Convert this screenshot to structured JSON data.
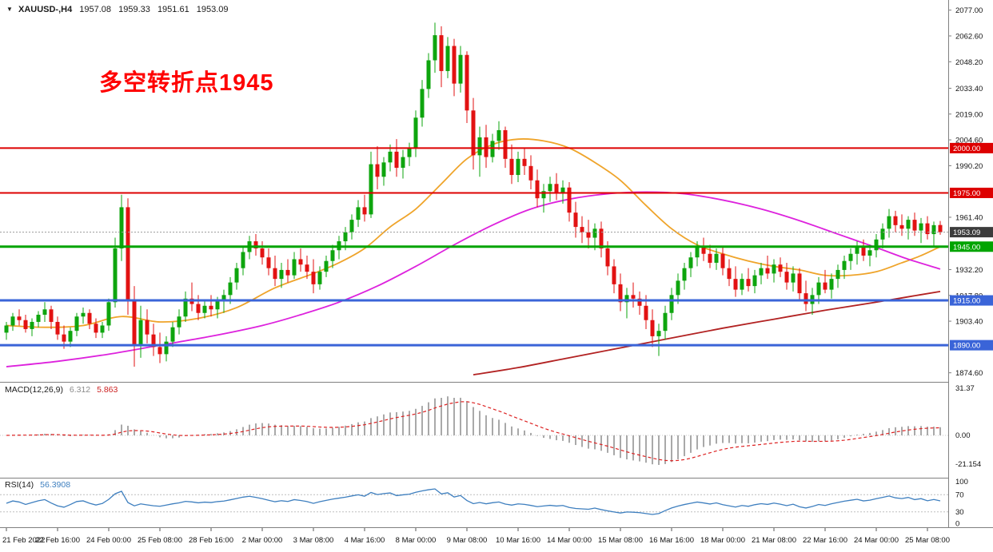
{
  "window": {
    "background": "#ffffff"
  },
  "header": {
    "collapse_icon": "▼",
    "symbol_period": "XAUUSD-,H4",
    "open": "1957.08",
    "high": "1959.33",
    "low": "1951.61",
    "close": "1953.09"
  },
  "annotation": {
    "text": "多空转折点1945",
    "color": "#ff0000"
  },
  "macd_panel": {
    "label": "MACD(12,26,9)",
    "main_value": "6.312",
    "signal_value": "5.863",
    "axis_labels": [
      "31.37",
      "0.00",
      "-21.154"
    ]
  },
  "rsi_panel": {
    "label": "RSI(14)",
    "value": "56.3908",
    "axis_labels": [
      "100",
      "70",
      "30",
      "0"
    ]
  },
  "price_axis": {
    "scale_labels": [
      2077.0,
      2062.6,
      2048.2,
      2033.4,
      2019.0,
      2004.6,
      1990.2,
      1961.4,
      1932.2,
      1917.8,
      1903.4,
      1874.6
    ],
    "badges": [
      {
        "label": "2000.00",
        "price": 2000.0,
        "color": "#dd0000"
      },
      {
        "label": "1975.00",
        "price": 1975.0,
        "color": "#dd0000"
      },
      {
        "label": "1953.09",
        "price": 1953.09,
        "color": "#3c3c3c"
      },
      {
        "label": "1945.00",
        "price": 1945.0,
        "color": "#00a400"
      },
      {
        "label": "1915.00",
        "price": 1915.0,
        "color": "#3a64d8"
      },
      {
        "label": "1890.00",
        "price": 1890.0,
        "color": "#3a64d8"
      }
    ]
  },
  "chart_data": {
    "type": "candlestick",
    "symbol": "XAUUSD-",
    "timeframe": "H4",
    "ylim": [
      1869.55,
      2082.65
    ],
    "current_price": 1953.09,
    "up_color": "#0ea50e",
    "down_color": "#e21212",
    "hlines": [
      {
        "price": 2000.0,
        "color": "#dd0000",
        "width": 2
      },
      {
        "price": 1975.0,
        "color": "#dd0000",
        "width": 2
      },
      {
        "price": 1945.0,
        "color": "#00a400",
        "width": 3
      },
      {
        "price": 1915.0,
        "color": "#3a64d8",
        "width": 3
      },
      {
        "price": 1890.0,
        "color": "#3a64d8",
        "width": 3
      }
    ],
    "time_labels": [
      {
        "bar": 0,
        "text": "21 Feb 2022"
      },
      {
        "bar": 8,
        "text": "22 Feb 16:00"
      },
      {
        "bar": 16,
        "text": "24 Feb 00:00"
      },
      {
        "bar": 24,
        "text": "25 Feb 08:00"
      },
      {
        "bar": 32,
        "text": "28 Feb 16:00"
      },
      {
        "bar": 40,
        "text": "2 Mar 00:00"
      },
      {
        "bar": 48,
        "text": "3 Mar 08:00"
      },
      {
        "bar": 56,
        "text": "4 Mar 16:00"
      },
      {
        "bar": 64,
        "text": "8 Mar 00:00"
      },
      {
        "bar": 72,
        "text": "9 Mar 08:00"
      },
      {
        "bar": 80,
        "text": "10 Mar 16:00"
      },
      {
        "bar": 88,
        "text": "14 Mar 00:00"
      },
      {
        "bar": 96,
        "text": "15 Mar 08:00"
      },
      {
        "bar": 104,
        "text": "16 Mar 16:00"
      },
      {
        "bar": 112,
        "text": "18 Mar 00:00"
      },
      {
        "bar": 120,
        "text": "21 Mar 08:00"
      },
      {
        "bar": 128,
        "text": "22 Mar 16:00"
      },
      {
        "bar": 136,
        "text": "24 Mar 00:00"
      },
      {
        "bar": 144,
        "text": "25 Mar 08:00"
      }
    ],
    "candles": [
      [
        1897,
        1903,
        1893,
        1901
      ],
      [
        1901,
        1908,
        1898,
        1906
      ],
      [
        1906,
        1910,
        1901,
        1904
      ],
      [
        1904,
        1907,
        1897,
        1899
      ],
      [
        1899,
        1905,
        1895,
        1903
      ],
      [
        1903,
        1909,
        1900,
        1907
      ],
      [
        1907,
        1914,
        1903,
        1910
      ],
      [
        1910,
        1912,
        1899,
        1903
      ],
      [
        1903,
        1906,
        1893,
        1896
      ],
      [
        1896,
        1901,
        1888,
        1892
      ],
      [
        1892,
        1900,
        1889,
        1898
      ],
      [
        1898,
        1908,
        1895,
        1906
      ],
      [
        1906,
        1911,
        1902,
        1908
      ],
      [
        1908,
        1910,
        1899,
        1902
      ],
      [
        1902,
        1905,
        1894,
        1897
      ],
      [
        1897,
        1903,
        1894,
        1901
      ],
      [
        1901,
        1916,
        1898,
        1914
      ],
      [
        1914,
        1950,
        1911,
        1944
      ],
      [
        1944,
        1974,
        1937,
        1967
      ],
      [
        1967,
        1972,
        1907,
        1915
      ],
      [
        1915,
        1923,
        1878,
        1890
      ],
      [
        1890,
        1912,
        1883,
        1904
      ],
      [
        1904,
        1910,
        1891,
        1896
      ],
      [
        1896,
        1902,
        1884,
        1889
      ],
      [
        1889,
        1897,
        1880,
        1885
      ],
      [
        1885,
        1895,
        1881,
        1892
      ],
      [
        1892,
        1903,
        1889,
        1900
      ],
      [
        1900,
        1910,
        1896,
        1906
      ],
      [
        1906,
        1920,
        1903,
        1916
      ],
      [
        1916,
        1925,
        1909,
        1913
      ],
      [
        1913,
        1918,
        1904,
        1908
      ],
      [
        1908,
        1915,
        1905,
        1912
      ],
      [
        1912,
        1918,
        1906,
        1910
      ],
      [
        1910,
        1917,
        1905,
        1915
      ],
      [
        1915,
        1921,
        1908,
        1918
      ],
      [
        1918,
        1928,
        1913,
        1925
      ],
      [
        1925,
        1936,
        1921,
        1933
      ],
      [
        1933,
        1945,
        1929,
        1942
      ],
      [
        1942,
        1951,
        1938,
        1948
      ],
      [
        1948,
        1952,
        1940,
        1944
      ],
      [
        1944,
        1948,
        1935,
        1939
      ],
      [
        1939,
        1944,
        1929,
        1933
      ],
      [
        1933,
        1940,
        1923,
        1927
      ],
      [
        1927,
        1936,
        1922,
        1932
      ],
      [
        1932,
        1938,
        1925,
        1929
      ],
      [
        1929,
        1942,
        1927,
        1938
      ],
      [
        1938,
        1944,
        1931,
        1935
      ],
      [
        1935,
        1940,
        1927,
        1931
      ],
      [
        1931,
        1938,
        1919,
        1924
      ],
      [
        1924,
        1934,
        1921,
        1931
      ],
      [
        1931,
        1940,
        1928,
        1937
      ],
      [
        1937,
        1946,
        1933,
        1943
      ],
      [
        1943,
        1951,
        1938,
        1948
      ],
      [
        1948,
        1956,
        1943,
        1953
      ],
      [
        1953,
        1963,
        1949,
        1960
      ],
      [
        1960,
        1971,
        1956,
        1967
      ],
      [
        1967,
        1974,
        1959,
        1963
      ],
      [
        1963,
        1998,
        1961,
        1991
      ],
      [
        1991,
        2001,
        1977,
        1984
      ],
      [
        1984,
        1995,
        1979,
        1992
      ],
      [
        1992,
        2002,
        1987,
        1998
      ],
      [
        1998,
        2005,
        1984,
        1989
      ],
      [
        1989,
        1999,
        1983,
        1995
      ],
      [
        1995,
        2003,
        1990,
        2000
      ],
      [
        2000,
        2021,
        1995,
        2017
      ],
      [
        2017,
        2038,
        2012,
        2033
      ],
      [
        2033,
        2053,
        2028,
        2049
      ],
      [
        2049,
        2070,
        2042,
        2063
      ],
      [
        2063,
        2068,
        2034,
        2043
      ],
      [
        2043,
        2062,
        2039,
        2057
      ],
      [
        2057,
        2061,
        2029,
        2036
      ],
      [
        2036,
        2057,
        2031,
        2052
      ],
      [
        2052,
        2054,
        2014,
        2021
      ],
      [
        2021,
        2028,
        1988,
        1996
      ],
      [
        1996,
        2012,
        1984,
        2006
      ],
      [
        2006,
        2013,
        1989,
        1995
      ],
      [
        1995,
        2008,
        1992,
        2004
      ],
      [
        2004,
        2015,
        1999,
        2010
      ],
      [
        2010,
        2012,
        1989,
        1994
      ],
      [
        1994,
        2002,
        1980,
        1985
      ],
      [
        1985,
        1998,
        1981,
        1994
      ],
      [
        1994,
        2000,
        1985,
        1990
      ],
      [
        1990,
        1996,
        1977,
        1982
      ],
      [
        1982,
        1988,
        1967,
        1972
      ],
      [
        1972,
        1980,
        1964,
        1976
      ],
      [
        1976,
        1984,
        1970,
        1980
      ],
      [
        1980,
        1986,
        1971,
        1975
      ],
      [
        1975,
        1982,
        1969,
        1978
      ],
      [
        1978,
        1981,
        1959,
        1964
      ],
      [
        1964,
        1970,
        1950,
        1956
      ],
      [
        1956,
        1962,
        1947,
        1953
      ],
      [
        1953,
        1960,
        1944,
        1950
      ],
      [
        1950,
        1958,
        1943,
        1955
      ],
      [
        1955,
        1959,
        1939,
        1944
      ],
      [
        1944,
        1948,
        1929,
        1934
      ],
      [
        1934,
        1938,
        1919,
        1924
      ],
      [
        1924,
        1930,
        1909,
        1914
      ],
      [
        1914,
        1922,
        1905,
        1918
      ],
      [
        1918,
        1925,
        1911,
        1916
      ],
      [
        1916,
        1920,
        1907,
        1912
      ],
      [
        1912,
        1918,
        1899,
        1904
      ],
      [
        1904,
        1910,
        1889,
        1895
      ],
      [
        1895,
        1902,
        1884,
        1898
      ],
      [
        1898,
        1912,
        1893,
        1908
      ],
      [
        1908,
        1922,
        1904,
        1918
      ],
      [
        1918,
        1930,
        1913,
        1926
      ],
      [
        1926,
        1936,
        1921,
        1933
      ],
      [
        1933,
        1942,
        1928,
        1939
      ],
      [
        1939,
        1948,
        1934,
        1945
      ],
      [
        1945,
        1950,
        1937,
        1941
      ],
      [
        1941,
        1946,
        1933,
        1936
      ],
      [
        1936,
        1944,
        1932,
        1941
      ],
      [
        1941,
        1945,
        1929,
        1933
      ],
      [
        1933,
        1938,
        1923,
        1927
      ],
      [
        1927,
        1934,
        1917,
        1921
      ],
      [
        1921,
        1930,
        1918,
        1927
      ],
      [
        1927,
        1933,
        1920,
        1923
      ],
      [
        1923,
        1932,
        1919,
        1929
      ],
      [
        1929,
        1936,
        1924,
        1933
      ],
      [
        1933,
        1940,
        1927,
        1930
      ],
      [
        1930,
        1938,
        1925,
        1935
      ],
      [
        1935,
        1939,
        1928,
        1931
      ],
      [
        1931,
        1936,
        1921,
        1925
      ],
      [
        1925,
        1934,
        1920,
        1930
      ],
      [
        1930,
        1933,
        1915,
        1919
      ],
      [
        1919,
        1926,
        1909,
        1913
      ],
      [
        1913,
        1922,
        1907,
        1918
      ],
      [
        1918,
        1928,
        1913,
        1925
      ],
      [
        1925,
        1932,
        1919,
        1921
      ],
      [
        1921,
        1930,
        1916,
        1927
      ],
      [
        1927,
        1935,
        1922,
        1932
      ],
      [
        1932,
        1940,
        1927,
        1937
      ],
      [
        1937,
        1944,
        1932,
        1941
      ],
      [
        1941,
        1948,
        1935,
        1945
      ],
      [
        1945,
        1949,
        1937,
        1940
      ],
      [
        1940,
        1946,
        1934,
        1943
      ],
      [
        1943,
        1952,
        1939,
        1949
      ],
      [
        1949,
        1958,
        1944,
        1955
      ],
      [
        1955,
        1966,
        1950,
        1962
      ],
      [
        1962,
        1965,
        1953,
        1957
      ],
      [
        1957,
        1963,
        1951,
        1955
      ],
      [
        1955,
        1962,
        1949,
        1960
      ],
      [
        1960,
        1964,
        1951,
        1954
      ],
      [
        1954,
        1961,
        1947,
        1958
      ],
      [
        1958,
        1962,
        1949,
        1952
      ],
      [
        1952,
        1959,
        1944.6,
        1957
      ],
      [
        1957.08,
        1959.33,
        1951.61,
        1953.09
      ]
    ],
    "moving_averages": [
      {
        "name": "ma-fast-orange",
        "color": "#efa42a",
        "points": [
          [
            0,
            1901
          ],
          [
            6,
            1900
          ],
          [
            12,
            1901
          ],
          [
            18,
            1906
          ],
          [
            24,
            1903
          ],
          [
            30,
            1905
          ],
          [
            36,
            1911
          ],
          [
            42,
            1922
          ],
          [
            48,
            1930
          ],
          [
            52,
            1936
          ],
          [
            56,
            1944
          ],
          [
            60,
            1956
          ],
          [
            64,
            1966
          ],
          [
            68,
            1980
          ],
          [
            72,
            1994
          ],
          [
            76,
            2002
          ],
          [
            80,
            2005
          ],
          [
            84,
            2004
          ],
          [
            88,
            2000
          ],
          [
            92,
            1992
          ],
          [
            96,
            1982
          ],
          [
            100,
            1968
          ],
          [
            104,
            1955
          ],
          [
            108,
            1946
          ],
          [
            112,
            1941
          ],
          [
            116,
            1937
          ],
          [
            120,
            1934
          ],
          [
            124,
            1932
          ],
          [
            128,
            1929
          ],
          [
            132,
            1929
          ],
          [
            136,
            1931
          ],
          [
            140,
            1936
          ],
          [
            143,
            1940
          ],
          [
            146,
            1945
          ]
        ]
      },
      {
        "name": "ma-medium-magenta",
        "color": "#dd22dd",
        "points": [
          [
            0,
            1878
          ],
          [
            8,
            1881
          ],
          [
            16,
            1885
          ],
          [
            24,
            1890
          ],
          [
            32,
            1895
          ],
          [
            40,
            1901
          ],
          [
            46,
            1907
          ],
          [
            52,
            1914
          ],
          [
            58,
            1923
          ],
          [
            64,
            1934
          ],
          [
            70,
            1946
          ],
          [
            76,
            1957
          ],
          [
            82,
            1966
          ],
          [
            88,
            1971.5
          ],
          [
            94,
            1974.5
          ],
          [
            100,
            1975.5
          ],
          [
            106,
            1974.5
          ],
          [
            112,
            1971
          ],
          [
            118,
            1966
          ],
          [
            124,
            1959.5
          ],
          [
            130,
            1952
          ],
          [
            136,
            1944.5
          ],
          [
            141,
            1938
          ],
          [
            146,
            1932.5
          ]
        ]
      },
      {
        "name": "ma-slow-darkred",
        "color": "#b22222",
        "points": [
          [
            73,
            1873.5
          ],
          [
            80,
            1877.5
          ],
          [
            88,
            1883
          ],
          [
            96,
            1888.5
          ],
          [
            104,
            1894
          ],
          [
            112,
            1899.5
          ],
          [
            120,
            1904.5
          ],
          [
            128,
            1909.5
          ],
          [
            136,
            1914
          ],
          [
            141,
            1917
          ],
          [
            146,
            1920
          ]
        ]
      }
    ],
    "macd": {
      "fast": 12,
      "slow": 26,
      "signal": 9,
      "histogram_color": "#a9a9a9",
      "signal_color": "#dd2222"
    },
    "rsi": {
      "period": 14,
      "color": "#3e7fbf",
      "levels": [
        70,
        30
      ]
    }
  }
}
